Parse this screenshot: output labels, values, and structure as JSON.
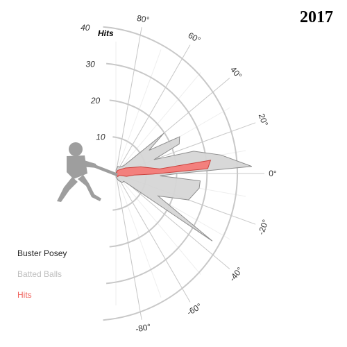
{
  "year": "2017",
  "legend": {
    "player": "Buster Posey",
    "batted": "Batted Balls",
    "hits": "Hits"
  },
  "colors": {
    "batted_fill": "#d6d6d6",
    "batted_stroke": "#8c8c8c",
    "hits_fill": "#f47b78",
    "hits_stroke": "#c9413c",
    "grid": "#c8c8c8",
    "batter": "#9e9e9e"
  },
  "chart_data": {
    "type": "radar",
    "radial_unit": "Hits",
    "radial_ticks": [
      "10",
      "20",
      "30",
      "40"
    ],
    "radial_range": [
      0,
      40
    ],
    "angle_ticks": [
      "80°",
      "60°",
      "40°",
      "20°",
      "0°",
      "-20°",
      "-40°",
      "-60°",
      "-80°"
    ],
    "angle_range": [
      -90,
      90
    ],
    "series": [
      {
        "name": "Batted Balls",
        "points": [
          {
            "angle": -88,
            "value": 1
          },
          {
            "angle": -70,
            "value": 2
          },
          {
            "angle": -55,
            "value": 3
          },
          {
            "angle": -45,
            "value": 3
          },
          {
            "angle": -40,
            "value": 5
          },
          {
            "angle": -35,
            "value": 32
          },
          {
            "angle": -28,
            "value": 13
          },
          {
            "angle": -20,
            "value": 21
          },
          {
            "angle": -10,
            "value": 23
          },
          {
            "angle": -5,
            "value": 23
          },
          {
            "angle": -3,
            "value": 12
          },
          {
            "angle": 0,
            "value": 17
          },
          {
            "angle": 3,
            "value": 37
          },
          {
            "angle": 10,
            "value": 29
          },
          {
            "angle": 16,
            "value": 22
          },
          {
            "angle": 20,
            "value": 11
          },
          {
            "angle": 25,
            "value": 19
          },
          {
            "angle": 30,
            "value": 20
          },
          {
            "angle": 35,
            "value": 11
          },
          {
            "angle": 40,
            "value": 17
          },
          {
            "angle": 45,
            "value": 3
          },
          {
            "angle": 60,
            "value": 2
          },
          {
            "angle": 75,
            "value": 2
          },
          {
            "angle": 88,
            "value": 1
          }
        ]
      },
      {
        "name": "Hits",
        "points": [
          {
            "angle": -88,
            "value": 0
          },
          {
            "angle": -60,
            "value": 1
          },
          {
            "angle": -30,
            "value": 1
          },
          {
            "angle": -15,
            "value": 3
          },
          {
            "angle": -5,
            "value": 5
          },
          {
            "angle": -1,
            "value": 10
          },
          {
            "angle": 3,
            "value": 25
          },
          {
            "angle": 8,
            "value": 26
          },
          {
            "angle": 6,
            "value": 12
          },
          {
            "angle": 15,
            "value": 7
          },
          {
            "angle": 30,
            "value": 3
          },
          {
            "angle": 60,
            "value": 1
          },
          {
            "angle": 88,
            "value": 0
          }
        ]
      }
    ]
  }
}
